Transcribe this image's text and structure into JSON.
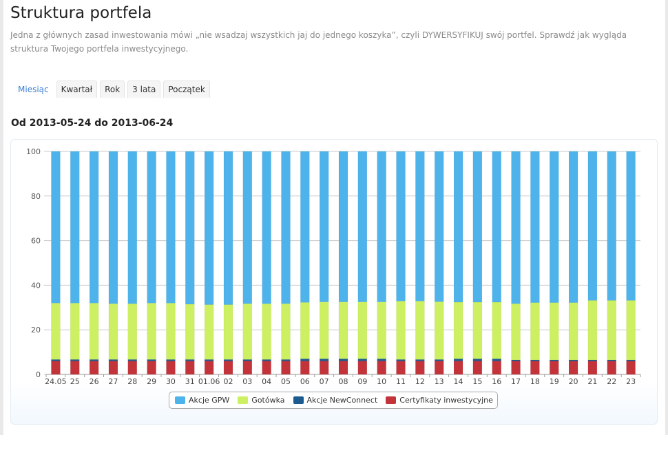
{
  "page": {
    "title": "Struktura portfela",
    "description": "Jedna z głównych zasad inwestowania mówi „nie wsadzaj wszystkich jaj do jednego koszyka”, czyli DYWERSYFIKUJ swój portfel. Sprawdź jak wygląda struktura Twojego portfela inwestycyjnego."
  },
  "tabs": [
    {
      "label": "Miesiąc",
      "active": true
    },
    {
      "label": "Kwartał",
      "active": false
    },
    {
      "label": "Rok",
      "active": false
    },
    {
      "label": "3 lata",
      "active": false
    },
    {
      "label": "Początek",
      "active": false
    }
  ],
  "range_title": "Od 2013-05-24 do 2013-06-24",
  "chart_data": {
    "type": "bar",
    "stacked": true,
    "categories": [
      "24.05",
      "25",
      "26",
      "27",
      "28",
      "29",
      "30",
      "31",
      "01.06",
      "02",
      "03",
      "04",
      "05",
      "06",
      "07",
      "08",
      "09",
      "10",
      "11",
      "12",
      "13",
      "14",
      "15",
      "16",
      "17",
      "18",
      "19",
      "20",
      "21",
      "22",
      "23"
    ],
    "ylim": [
      0,
      100
    ],
    "yticks": [
      0,
      20,
      40,
      60,
      80,
      100
    ],
    "grid": true,
    "legend_position": "bottom",
    "series": [
      {
        "name": "Certyfikaty inwestycyjne",
        "color": "#c3343a",
        "values": [
          6,
          6,
          6,
          6,
          6,
          6,
          6,
          6,
          6,
          6,
          6,
          6,
          6,
          6,
          6,
          6,
          6,
          6,
          6,
          6,
          6,
          6,
          6,
          6,
          6,
          6,
          6,
          6,
          6,
          6,
          6
        ]
      },
      {
        "name": "Akcje NewConnect",
        "color": "#1c5b8f",
        "values": [
          0.7,
          0.7,
          0.7,
          0.7,
          0.7,
          0.7,
          0.7,
          0.7,
          0.7,
          0.7,
          0.7,
          0.7,
          0.7,
          1,
          1,
          1,
          1,
          1,
          0.7,
          0.7,
          0.7,
          1,
          1,
          1,
          0.5,
          0.5,
          0.5,
          0.5,
          0.5,
          0.5,
          0.5
        ]
      },
      {
        "name": "Gotówka",
        "color": "#ccf062",
        "values": [
          25.3,
          25.3,
          25.3,
          25,
          25,
          25.3,
          25.3,
          24.8,
          24.6,
          24.6,
          25,
          25,
          25,
          25.3,
          25.5,
          25.5,
          25.5,
          25.5,
          26.2,
          26.2,
          25.9,
          25.4,
          25.4,
          25.4,
          25.2,
          25.7,
          25.7,
          25.7,
          26.7,
          26.7,
          26.7
        ]
      },
      {
        "name": "Akcje GPW",
        "color": "#4db3ea",
        "values": [
          68,
          68,
          68,
          68.3,
          68.3,
          68,
          68,
          68.5,
          68.7,
          68.7,
          68.3,
          68.3,
          68.3,
          67.7,
          67.5,
          67.5,
          67.5,
          67.5,
          67.1,
          67.1,
          67.4,
          67.6,
          67.6,
          67.6,
          68.3,
          67.8,
          67.8,
          67.8,
          66.8,
          66.8,
          66.8
        ]
      }
    ],
    "legend": [
      {
        "name": "Akcje GPW",
        "color": "#4db3ea"
      },
      {
        "name": "Gotówka",
        "color": "#ccf062"
      },
      {
        "name": "Akcje NewConnect",
        "color": "#1c5b8f"
      },
      {
        "name": "Certyfikaty inwestycyjne",
        "color": "#c3343a"
      }
    ]
  }
}
